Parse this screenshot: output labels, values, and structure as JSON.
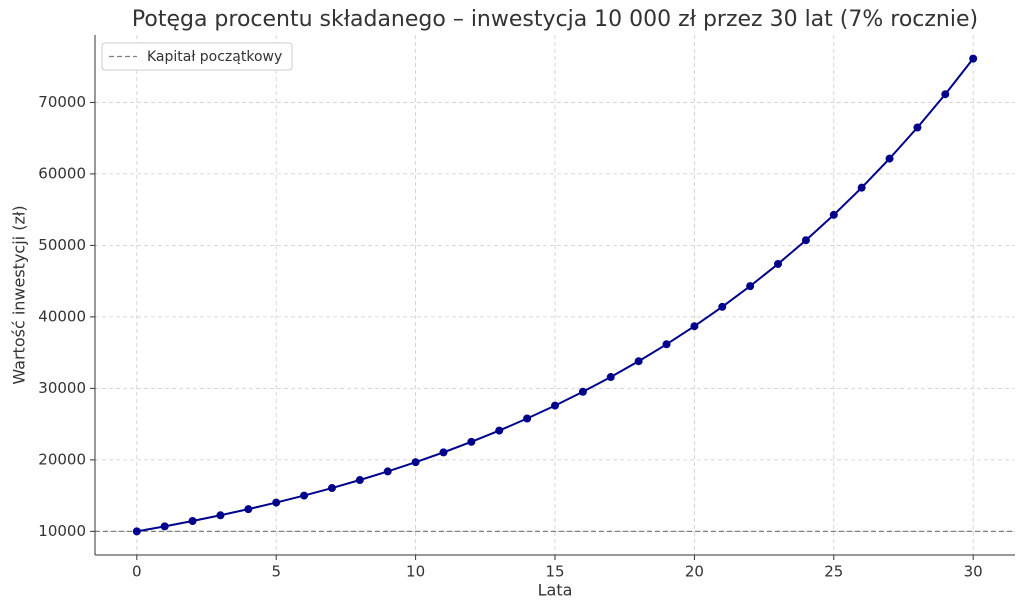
{
  "chart_data": {
    "type": "line",
    "title": "Potęga procentu składanego – inwestycja 10 000 zł przez 30 lat (7% rocznie)",
    "xlabel": "Lata",
    "ylabel": "Wartość inwestycji (zł)",
    "x": [
      0,
      1,
      2,
      3,
      4,
      5,
      6,
      7,
      8,
      9,
      10,
      11,
      12,
      13,
      14,
      15,
      16,
      17,
      18,
      19,
      20,
      21,
      22,
      23,
      24,
      25,
      26,
      27,
      28,
      29,
      30
    ],
    "series": [
      {
        "color": "#00008b",
        "values": [
          10000,
          10700,
          11449,
          12250,
          13108,
          14026,
          15007,
          16058,
          17182,
          18385,
          19672,
          21049,
          22522,
          24098,
          25785,
          27590,
          29522,
          31588,
          33799,
          36165,
          38697,
          41406,
          44304,
          47405,
          50724,
          54274,
          58074,
          62139,
          66488,
          71143,
          76123
        ]
      }
    ],
    "baseline": {
      "name": "Kapitał początkowy",
      "value": 10000,
      "color": "#808080"
    },
    "xlim": [
      -1.5,
      31.5
    ],
    "ylim": [
      6694,
      79428
    ],
    "xticks": [
      0,
      5,
      10,
      15,
      20,
      25,
      30
    ],
    "yticks": [
      10000,
      20000,
      30000,
      40000,
      50000,
      60000,
      70000
    ],
    "grid": true,
    "legend": "upper left"
  }
}
